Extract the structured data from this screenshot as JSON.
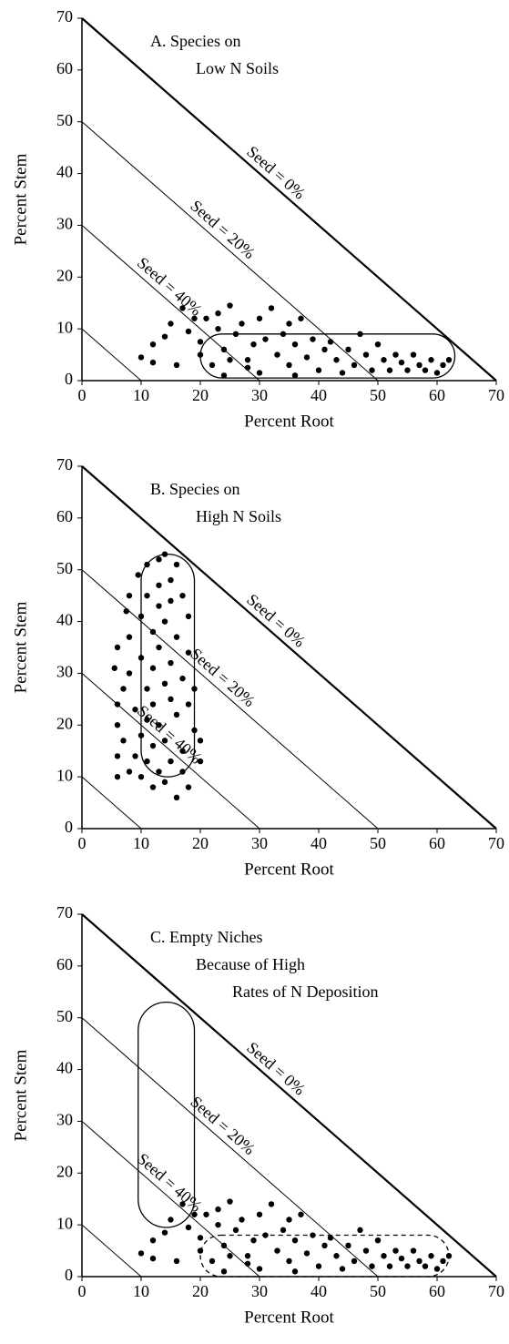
{
  "chart_data": [
    {
      "type": "scatter",
      "title": [
        "A. Species on",
        "Low N Soils"
      ],
      "xlabel": "Percent Root",
      "ylabel": "Percent Stem",
      "xlim": [
        0,
        70
      ],
      "ylim": [
        0,
        70
      ],
      "xticks": [
        0,
        10,
        20,
        30,
        40,
        50,
        60,
        70
      ],
      "yticks": [
        0,
        10,
        20,
        30,
        40,
        50,
        60,
        70
      ],
      "color": "#000000",
      "reference_lines": [
        {
          "sum": 70,
          "label": "Seed = 0%",
          "heavy": true
        },
        {
          "sum": 50,
          "label": "Seed = 20%"
        },
        {
          "sum": 30,
          "label": "Seed = 40%"
        },
        {
          "sum": 10
        }
      ],
      "regions": [
        {
          "xlim": [
            20,
            63
          ],
          "ylim": [
            0.5,
            9
          ],
          "dashed": false
        }
      ],
      "x": [
        10,
        12,
        12,
        15,
        14,
        16,
        17,
        18,
        19,
        20,
        20,
        21,
        22,
        23,
        23,
        24,
        24,
        25,
        25,
        26,
        27,
        28,
        28,
        29,
        30,
        30,
        31,
        32,
        33,
        34,
        35,
        35,
        36,
        36,
        37,
        38,
        39,
        40,
        41,
        42,
        43,
        44,
        45,
        46,
        47,
        48,
        49,
        50,
        51,
        52,
        53,
        54,
        55,
        56,
        57,
        58,
        59,
        60,
        61,
        62
      ],
      "values": [
        4.5,
        3.5,
        7,
        11,
        8.5,
        3,
        14,
        9.5,
        12,
        5,
        7.5,
        12,
        3,
        10,
        13,
        1,
        6,
        14.5,
        4,
        9,
        11,
        4,
        2.5,
        7,
        1.5,
        12,
        8,
        14,
        5,
        9,
        3,
        11,
        1,
        7,
        12,
        4.5,
        8,
        2,
        6,
        7.5,
        4,
        1.5,
        6,
        3,
        9,
        5,
        2,
        7,
        4,
        2,
        5,
        3.5,
        2,
        5,
        3,
        2,
        4,
        1.5,
        3,
        4
      ]
    },
    {
      "type": "scatter",
      "title": [
        "B. Species on",
        "High N Soils"
      ],
      "xlabel": "Percent Root",
      "ylabel": "Percent Stem",
      "xlim": [
        0,
        70
      ],
      "ylim": [
        0,
        70
      ],
      "xticks": [
        0,
        10,
        20,
        30,
        40,
        50,
        60,
        70
      ],
      "yticks": [
        0,
        10,
        20,
        30,
        40,
        50,
        60,
        70
      ],
      "color": "#000000",
      "reference_lines": [
        {
          "sum": 70,
          "label": "Seed = 0%",
          "heavy": true
        },
        {
          "sum": 50,
          "label": "Seed = 20%"
        },
        {
          "sum": 30,
          "label": "Seed = 40%"
        },
        {
          "sum": 10
        }
      ],
      "regions": [
        {
          "xlim": [
            10,
            19
          ],
          "ylim": [
            10,
            53
          ],
          "dashed": false
        }
      ],
      "x": [
        6,
        6,
        6,
        6,
        5.5,
        6,
        7,
        7,
        7.5,
        8,
        8,
        8,
        8,
        9,
        9,
        9.5,
        10,
        10,
        10,
        10,
        11,
        11,
        11,
        11,
        11,
        12,
        12,
        12,
        12,
        12,
        13,
        13,
        13,
        13,
        13,
        13,
        14,
        14,
        14,
        14,
        14,
        15,
        15,
        15,
        15,
        15,
        16,
        16,
        16,
        16,
        17,
        17,
        17,
        17,
        18,
        18,
        18,
        18,
        19,
        19,
        20,
        20
      ],
      "values": [
        10,
        14,
        20,
        24,
        31,
        35,
        27,
        17,
        42,
        45,
        11,
        30,
        37,
        23,
        14,
        49,
        41,
        33,
        18,
        10,
        51,
        45,
        27,
        21,
        13,
        38,
        31,
        24,
        16,
        8,
        52,
        47,
        43,
        35,
        20,
        11,
        53,
        40,
        28,
        17,
        9,
        48,
        44,
        32,
        25,
        13,
        51,
        37,
        22,
        6,
        45,
        29,
        15,
        11,
        41,
        34,
        24,
        8,
        27,
        19,
        17,
        13
      ]
    },
    {
      "type": "scatter",
      "title": [
        "C. Empty Niches",
        "Because of High",
        "Rates of N Deposition"
      ],
      "xlabel": "Percent Root",
      "ylabel": "Percent Stem",
      "xlim": [
        0,
        70
      ],
      "ylim": [
        0,
        70
      ],
      "xticks": [
        0,
        10,
        20,
        30,
        40,
        50,
        60,
        70
      ],
      "yticks": [
        0,
        10,
        20,
        30,
        40,
        50,
        60,
        70
      ],
      "color": "#000000",
      "reference_lines": [
        {
          "sum": 70,
          "label": "Seed = 0%",
          "heavy": true
        },
        {
          "sum": 50,
          "label": "Seed = 20%"
        },
        {
          "sum": 30,
          "label": "Seed = 40%"
        },
        {
          "sum": 10
        }
      ],
      "regions": [
        {
          "xlim": [
            9.5,
            19
          ],
          "ylim": [
            9.5,
            53
          ],
          "dashed": false
        },
        {
          "xlim": [
            20,
            62
          ],
          "ylim": [
            0,
            8
          ],
          "dashed": true
        }
      ],
      "x": [
        10,
        12,
        12,
        15,
        14,
        16,
        17,
        18,
        19,
        20,
        20,
        21,
        22,
        23,
        23,
        24,
        24,
        25,
        25,
        26,
        27,
        28,
        28,
        29,
        30,
        30,
        31,
        32,
        33,
        34,
        35,
        35,
        36,
        36,
        37,
        38,
        39,
        40,
        41,
        42,
        43,
        44,
        45,
        46,
        47,
        48,
        49,
        50,
        51,
        52,
        53,
        54,
        55,
        56,
        57,
        58,
        59,
        60,
        61,
        62
      ],
      "values": [
        4.5,
        3.5,
        7,
        11,
        8.5,
        3,
        14,
        9.5,
        12,
        5,
        7.5,
        12,
        3,
        10,
        13,
        1,
        6,
        14.5,
        4,
        9,
        11,
        4,
        2.5,
        7,
        1.5,
        12,
        8,
        14,
        5,
        9,
        3,
        11,
        1,
        7,
        12,
        4.5,
        8,
        2,
        6,
        7.5,
        4,
        1.5,
        6,
        3,
        9,
        5,
        2,
        7,
        4,
        2,
        5,
        3.5,
        2,
        5,
        3,
        2,
        4,
        1.5,
        3,
        4
      ]
    }
  ]
}
